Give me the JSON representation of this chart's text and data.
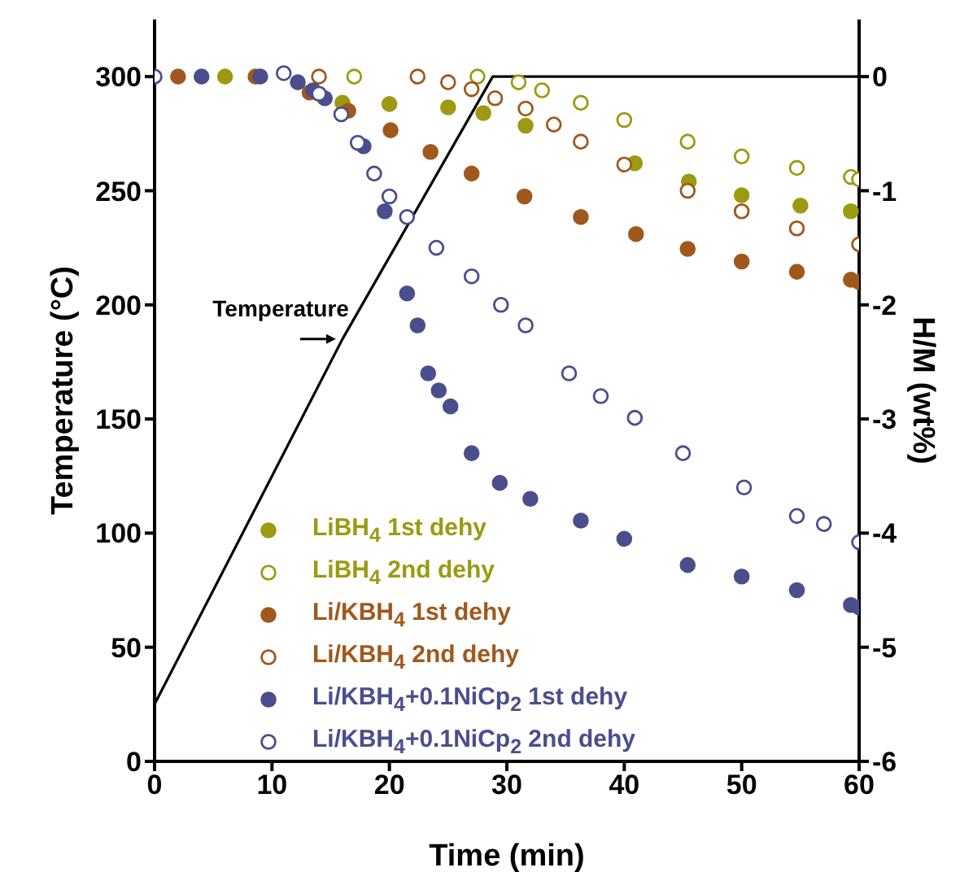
{
  "chart_data": {
    "type": "scatter",
    "xlabel": "Time (min)",
    "ylabel": "Temperature (°C)",
    "y2label": "H/M (wt%)",
    "xlim": [
      0,
      60
    ],
    "xticks": [
      0,
      10,
      20,
      30,
      40,
      50,
      60
    ],
    "ylim": [
      0,
      325
    ],
    "yticks": [
      0,
      50,
      100,
      150,
      200,
      250,
      300
    ],
    "y2lim": [
      -6,
      0.5
    ],
    "y2ticks": [
      -6,
      -5,
      -4,
      -3,
      -2,
      -1,
      0
    ],
    "grid": false,
    "legend": "bottom left",
    "marker": "circle",
    "series": [
      {
        "name": "Temperature",
        "type": "line",
        "axis": "y",
        "color": "#000000",
        "marker": "none",
        "x": [
          0,
          16,
          28.8,
          60
        ],
        "values": [
          25,
          185,
          300,
          300
        ]
      },
      {
        "name": "LiBH$_{4}$ 1st dehy",
        "axis": "y2",
        "color": "#9c9a12",
        "x": [
          6,
          16,
          20,
          25,
          28,
          31.6,
          40.9,
          45.5,
          50,
          55,
          59.3
        ],
        "values": [
          0,
          -0.23,
          -0.24,
          -0.27,
          -0.32,
          -0.43,
          -0.76,
          -0.92,
          -1.04,
          -1.13,
          -1.18
        ]
      },
      {
        "name": "LiBH$_{4}$ 2nd dehy",
        "axis": "y2",
        "color": "#9c9a12",
        "x": [
          17,
          27.5,
          31,
          33,
          36.3,
          40,
          45.4,
          50,
          54.7,
          59.3,
          60
        ],
        "values": [
          0,
          0,
          -0.05,
          -0.12,
          -0.23,
          -0.38,
          -0.57,
          -0.7,
          -0.8,
          -0.88,
          -0.9
        ]
      },
      {
        "name": "Li/KBH$_{4}$ 1st dehy",
        "axis": "y2",
        "color": "#a0581c",
        "x": [
          2,
          8.6,
          13.2,
          16.5,
          20.1,
          23.5,
          27,
          31.5,
          36.3,
          41,
          45.4,
          50,
          54.7,
          59.3,
          60
        ],
        "values": [
          0,
          0,
          -0.14,
          -0.3,
          -0.47,
          -0.66,
          -0.85,
          -1.05,
          -1.23,
          -1.38,
          -1.51,
          -1.62,
          -1.71,
          -1.78,
          -1.8
        ]
      },
      {
        "name": "Li/KBH$_{4}$ 2nd dehy",
        "axis": "y2",
        "color": "#a0581c",
        "x": [
          14,
          22.4,
          25,
          27,
          29,
          31.6,
          34,
          36.3,
          40,
          45.4,
          50,
          54.7,
          60
        ],
        "values": [
          0,
          0,
          -0.05,
          -0.11,
          -0.19,
          -0.28,
          -0.42,
          -0.57,
          -0.77,
          -1.0,
          -1.18,
          -1.33,
          -1.47
        ]
      },
      {
        "name": "Li/KBH$_{4}$+0.1NiCp$_{2}$ 1st dehy",
        "axis": "y2",
        "color": "#4a4e8c",
        "x": [
          4,
          9,
          12.2,
          13.5,
          14.5,
          17.8,
          19.6,
          21.5,
          22.4,
          23.3,
          24.2,
          25.2,
          27,
          29.4,
          32,
          36.3,
          40,
          45.4,
          50,
          54.7,
          59.3,
          60
        ],
        "values": [
          0,
          0,
          -0.05,
          -0.12,
          -0.19,
          -0.61,
          -1.18,
          -1.9,
          -2.18,
          -2.6,
          -2.75,
          -2.89,
          -3.3,
          -3.56,
          -3.7,
          -3.89,
          -4.05,
          -4.28,
          -4.38,
          -4.5,
          -4.63,
          -4.65
        ]
      },
      {
        "name": "Li/KBH$_{4}$+0.1NiCp$_{2}$ 2nd dehy",
        "axis": "y2",
        "color": "#4a4e8c",
        "x": [
          0,
          11,
          14,
          15.9,
          17.3,
          18.7,
          20,
          21.5,
          24,
          27,
          29.5,
          31.6,
          35.3,
          38,
          40.9,
          45,
          50.2,
          54.7,
          57,
          60
        ],
        "values": [
          0,
          0.03,
          -0.15,
          -0.33,
          -0.58,
          -0.85,
          -1.05,
          -1.23,
          -1.5,
          -1.75,
          -2.0,
          -2.18,
          -2.6,
          -2.8,
          -2.99,
          -3.3,
          -3.6,
          -3.85,
          -3.92,
          -4.08
        ]
      }
    ]
  }
}
